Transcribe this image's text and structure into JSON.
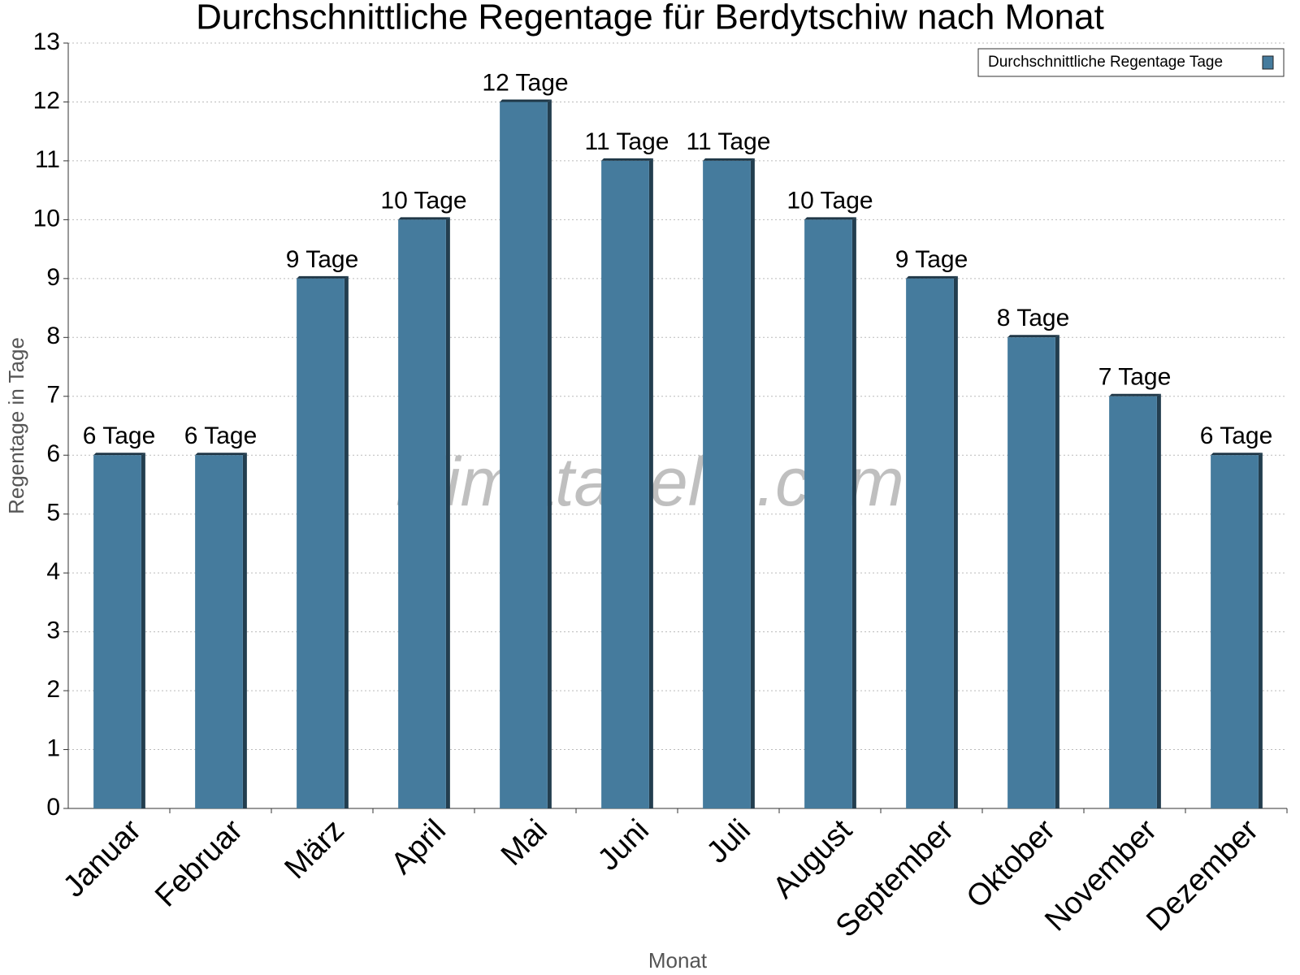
{
  "chart_data": {
    "type": "bar",
    "title": "Durchschnittliche Regentage für Berdytschiw nach Monat",
    "x_label": "Monat",
    "y_label": "Regentage in Tage",
    "watermark": "klimatabelle.com",
    "categories": [
      "Januar",
      "Februar",
      "März",
      "April",
      "Mai",
      "Juni",
      "Juli",
      "August",
      "September",
      "Oktober",
      "November",
      "Dezember"
    ],
    "series": [
      {
        "name": "Durchschnittliche Regentage Tage",
        "color": "#457b9d",
        "values": [
          6,
          6,
          9,
          10,
          12,
          11,
          11,
          10,
          9,
          8,
          7,
          6
        ],
        "value_labels": [
          "6 Tage",
          "6 Tage",
          "9 Tage",
          "10 Tage",
          "12 Tage",
          "11 Tage",
          "11 Tage",
          "10 Tage",
          "9 Tage",
          "8 Tage",
          "7 Tage",
          "6 Tage"
        ]
      }
    ],
    "ylim": [
      0,
      13
    ],
    "yticks": [
      0,
      1,
      2,
      3,
      4,
      5,
      6,
      7,
      8,
      9,
      10,
      11,
      12,
      13
    ],
    "grid": true,
    "legend": "top-right"
  }
}
